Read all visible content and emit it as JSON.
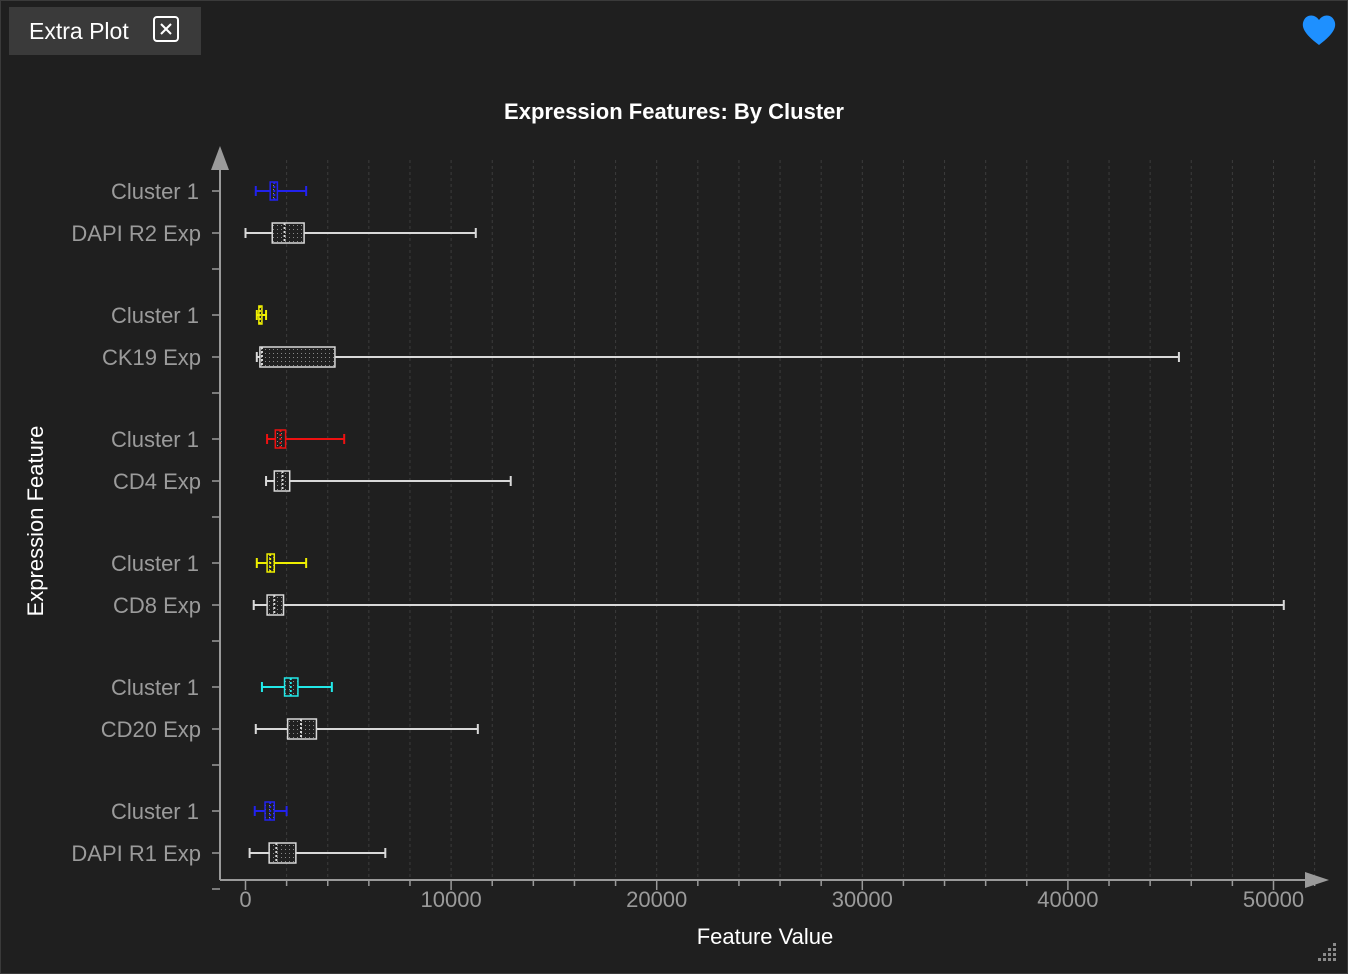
{
  "tab": {
    "label": "Extra Plot"
  },
  "colors": {
    "background": "#1f1f1f",
    "tab_bg": "#3a3a3a",
    "accent_heart": "#1e90ff",
    "axis": "#9a9a9a",
    "grid": "#3c3c3c",
    "overall": "#d9d9d9"
  },
  "icons": {
    "close": "close-icon",
    "favorite": "heart-icon",
    "resize": "resize-grip-icon"
  },
  "chart_data": {
    "type": "boxplot",
    "orientation": "horizontal",
    "title": "Expression Features: By Cluster",
    "xlabel": "Feature Value",
    "ylabel": "Expression Feature",
    "xlim": [
      -1200,
      52300
    ],
    "x_ticks": [
      0,
      10000,
      20000,
      30000,
      40000,
      50000
    ],
    "x_tick_labels": [
      "0",
      "10000",
      "20000",
      "30000",
      "40000",
      "50000"
    ],
    "grid": "vertical dashed",
    "groups": [
      {
        "feature": "DAPI R2 Exp",
        "cluster": {
          "label": "Cluster 1",
          "color": "#2222ee",
          "min": 500,
          "q1": 1200,
          "median": 1400,
          "q3": 1550,
          "max": 2950
        },
        "overall": {
          "min": 0,
          "q1": 1300,
          "median": 1900,
          "q3": 2850,
          "max": 11200
        }
      },
      {
        "feature": "CK19 Exp",
        "cluster": {
          "label": "Cluster 1",
          "color": "#f0f000",
          "min": 550,
          "q1": 650,
          "median": 700,
          "q3": 800,
          "max": 1000
        },
        "overall": {
          "min": 550,
          "q1": 700,
          "median": 800,
          "q3": 4350,
          "max": 45400
        }
      },
      {
        "feature": "CD4 Exp",
        "cluster": {
          "label": "Cluster 1",
          "color": "#ee1111",
          "min": 1050,
          "q1": 1450,
          "median": 1700,
          "q3": 1950,
          "max": 4800
        },
        "overall": {
          "min": 1000,
          "q1": 1400,
          "median": 1800,
          "q3": 2150,
          "max": 12900
        }
      },
      {
        "feature": "CD8 Exp",
        "cluster": {
          "label": "Cluster 1",
          "color": "#eeee00",
          "min": 550,
          "q1": 1050,
          "median": 1200,
          "q3": 1400,
          "max": 2950
        },
        "overall": {
          "min": 400,
          "q1": 1050,
          "median": 1400,
          "q3": 1850,
          "max": 50500
        }
      },
      {
        "feature": "CD20 Exp",
        "cluster": {
          "label": "Cluster 1",
          "color": "#22e8e8",
          "min": 800,
          "q1": 1900,
          "median": 2200,
          "q3": 2550,
          "max": 4200
        },
        "overall": {
          "min": 500,
          "q1": 2050,
          "median": 2700,
          "q3": 3450,
          "max": 11300
        }
      },
      {
        "feature": "DAPI R1 Exp",
        "cluster": {
          "label": "Cluster 1",
          "color": "#2222ee",
          "min": 450,
          "q1": 950,
          "median": 1200,
          "q3": 1400,
          "max": 2000
        },
        "overall": {
          "min": 200,
          "q1": 1150,
          "median": 1500,
          "q3": 2450,
          "max": 6800
        }
      }
    ]
  }
}
